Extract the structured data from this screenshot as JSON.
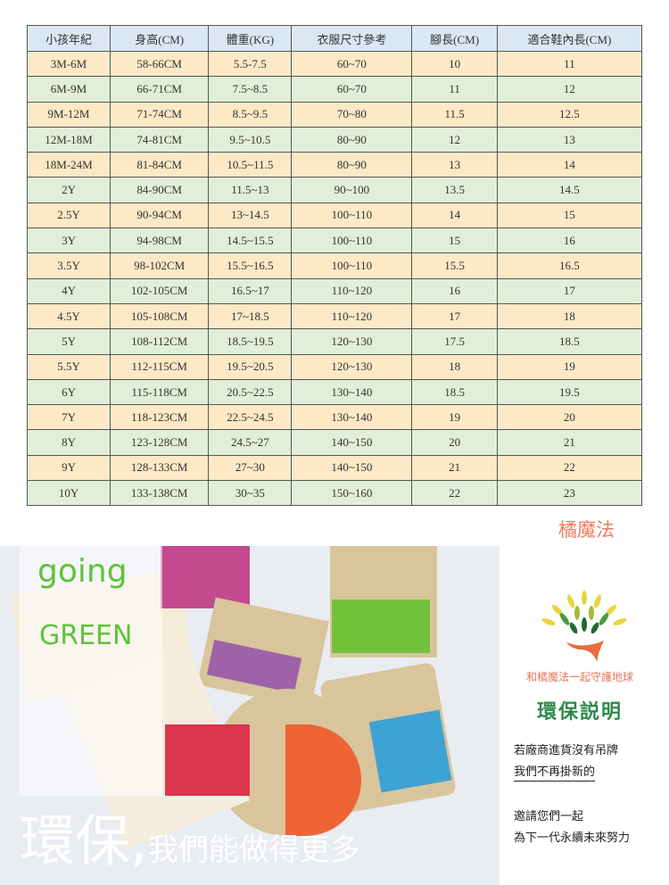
{
  "table": {
    "headers": [
      "小孩年紀",
      "身高(CM)",
      "體重(KG)",
      "衣服尺寸參考",
      "腳長(CM)",
      "適合鞋內長(CM)"
    ],
    "rows": [
      [
        "3M-6M",
        "58-66CM",
        "5.5-7.5",
        "60~70",
        "10",
        "11"
      ],
      [
        "6M-9M",
        "66-71CM",
        "7.5~8.5",
        "60~70",
        "11",
        "12"
      ],
      [
        "9M-12M",
        "71-74CM",
        "8.5~9.5",
        "70~80",
        "11.5",
        "12.5"
      ],
      [
        "12M-18M",
        "74-81CM",
        "9.5~10.5",
        "80~90",
        "12",
        "13"
      ],
      [
        "18M-24M",
        "81-84CM",
        "10.5~11.5",
        "80~90",
        "13",
        "14"
      ],
      [
        "2Y",
        "84-90CM",
        "11.5~13",
        "90~100",
        "13.5",
        "14.5"
      ],
      [
        "2.5Y",
        "90-94CM",
        "13~14.5",
        "100~110",
        "14",
        "15"
      ],
      [
        "3Y",
        "94-98CM",
        "14.5~15.5",
        "100~110",
        "15",
        "16"
      ],
      [
        "3.5Y",
        "98-102CM",
        "15.5~16.5",
        "100~110",
        "15.5",
        "16.5"
      ],
      [
        "4Y",
        "102-105CM",
        "16.5~17",
        "110~120",
        "16",
        "17"
      ],
      [
        "4.5Y",
        "105-108CM",
        "17~18.5",
        "110~120",
        "17",
        "18"
      ],
      [
        "5Y",
        "108-112CM",
        "18.5~19.5",
        "120~130",
        "17.5",
        "18.5"
      ],
      [
        "5.5Y",
        "112-115CM",
        "19.5~20.5",
        "120~130",
        "18",
        "19"
      ],
      [
        "6Y",
        "115-118CM",
        "20.5~22.5",
        "130~140",
        "18.5",
        "19.5"
      ],
      [
        "7Y",
        "118-123CM",
        "22.5~24.5",
        "130~140",
        "19",
        "20"
      ],
      [
        "8Y",
        "123-128CM",
        "24.5~27",
        "140~150",
        "20",
        "21"
      ],
      [
        "9Y",
        "128-133CM",
        "27~30",
        "140~150",
        "21",
        "22"
      ],
      [
        "10Y",
        "133-138CM",
        "30~35",
        "150~160",
        "22",
        "23"
      ]
    ]
  },
  "brand": "橘魔法",
  "banner": {
    "going": "going",
    "green": "GREEN",
    "big": "環保",
    "comma": ",",
    "tagline": "我們能做得更多"
  },
  "eco": {
    "slogan": "和橘魔法一起守護地球",
    "title": "環保説明",
    "line1": "若廠商進貨沒有吊牌",
    "line2": "我們不再掛新的",
    "line3": "邀請您們一起",
    "line4": "為下一代永續未來努力"
  },
  "colors": {
    "header": "#dbe7f3",
    "row_odd": "#fde9c6",
    "row_even": "#e2efd8",
    "brand": "#ec7b5e",
    "green": "#5ec33c"
  }
}
